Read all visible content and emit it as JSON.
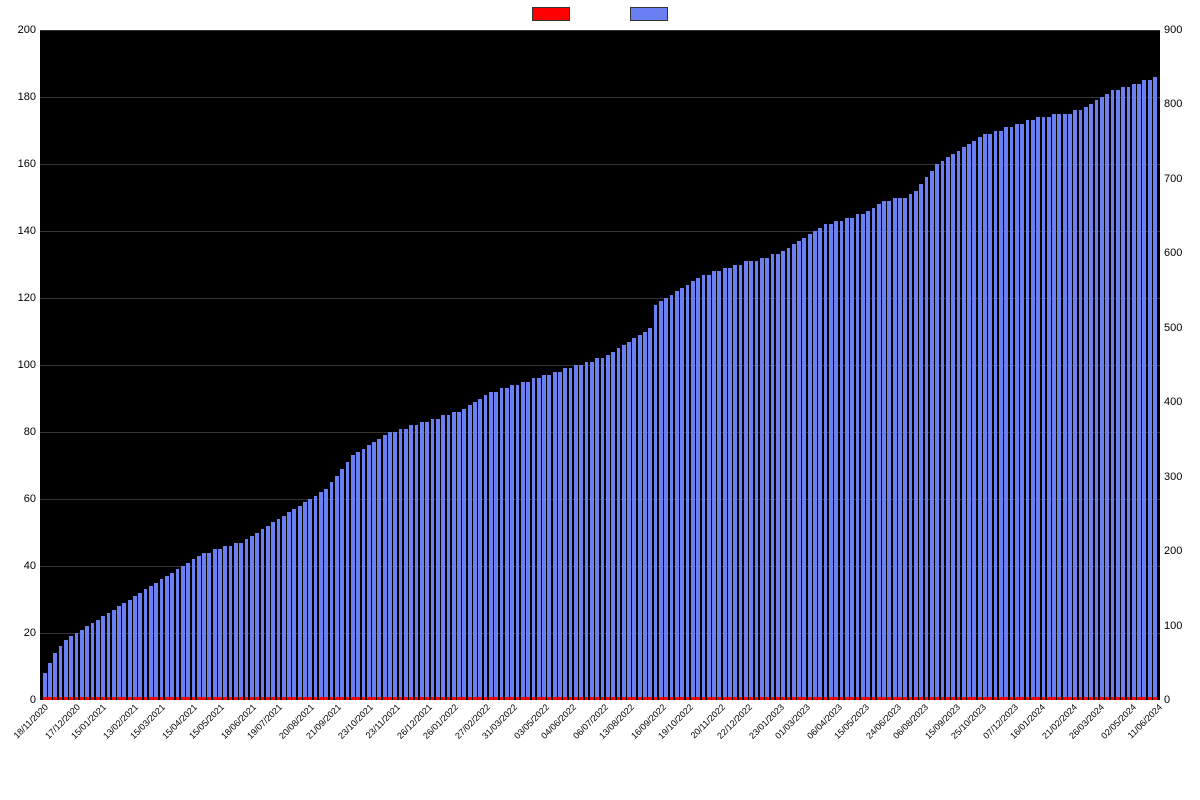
{
  "legend": {
    "series1_color": "#ff0000",
    "series2_color": "#6a7ff2",
    "swatch_border": "#333333"
  },
  "chart": {
    "type": "bar-dual-axis",
    "background_color": "#000000",
    "grid_color": "#333333",
    "bar_fill_ratio": 0.7,
    "left_axis": {
      "min": 0,
      "max": 200,
      "step": 20,
      "color": "#000000",
      "fontsize": 11
    },
    "right_axis": {
      "min": 0,
      "max": 900,
      "step": 100,
      "color": "#000000",
      "fontsize": 11
    },
    "red_value": 1,
    "categories": [
      "18/11/2020",
      "17/12/2020",
      "15/01/2021",
      "13/02/2021",
      "15/03/2021",
      "15/04/2021",
      "15/05/2021",
      "18/06/2021",
      "19/07/2021",
      "20/08/2021",
      "21/09/2021",
      "23/10/2021",
      "23/11/2021",
      "26/12/2021",
      "26/01/2022",
      "27/02/2022",
      "31/03/2022",
      "03/05/2022",
      "04/06/2022",
      "06/07/2022",
      "13/08/2022",
      "16/09/2022",
      "19/10/2022",
      "20/11/2022",
      "22/12/2022",
      "23/01/2023",
      "01/03/2023",
      "06/04/2023",
      "15/05/2023",
      "24/06/2023",
      "06/08/2023",
      "15/09/2023",
      "25/10/2023",
      "07/12/2023",
      "16/01/2024",
      "21/02/2024",
      "26/03/2024",
      "02/05/2024",
      "11/06/2024"
    ],
    "x_label_fontsize": 9,
    "x_label_rotation": -45,
    "blue_values": [
      8,
      11,
      14,
      16,
      18,
      19,
      20,
      21,
      22,
      23,
      24,
      25,
      26,
      27,
      28,
      29,
      30,
      31,
      32,
      33,
      34,
      35,
      36,
      37,
      38,
      39,
      40,
      41,
      42,
      43,
      44,
      44,
      45,
      45,
      46,
      46,
      47,
      47,
      48,
      49,
      50,
      51,
      52,
      53,
      54,
      55,
      56,
      57,
      58,
      59,
      60,
      61,
      62,
      63,
      65,
      67,
      69,
      71,
      73,
      74,
      75,
      76,
      77,
      78,
      79,
      80,
      80,
      81,
      81,
      82,
      82,
      83,
      83,
      84,
      84,
      85,
      85,
      86,
      86,
      87,
      88,
      89,
      90,
      91,
      92,
      92,
      93,
      93,
      94,
      94,
      95,
      95,
      96,
      96,
      97,
      97,
      98,
      98,
      99,
      99,
      100,
      100,
      101,
      101,
      102,
      102,
      103,
      104,
      105,
      106,
      107,
      108,
      109,
      110,
      111,
      118,
      119,
      120,
      121,
      122,
      123,
      124,
      125,
      126,
      127,
      127,
      128,
      128,
      129,
      129,
      130,
      130,
      131,
      131,
      131,
      132,
      132,
      133,
      133,
      134,
      135,
      136,
      137,
      138,
      139,
      140,
      141,
      142,
      142,
      143,
      143,
      144,
      144,
      145,
      145,
      146,
      147,
      148,
      149,
      149,
      150,
      150,
      150,
      151,
      152,
      154,
      156,
      158,
      160,
      161,
      162,
      163,
      164,
      165,
      166,
      167,
      168,
      169,
      169,
      170,
      170,
      171,
      171,
      172,
      172,
      173,
      173,
      174,
      174,
      174,
      175,
      175,
      175,
      175,
      176,
      176,
      177,
      178,
      179,
      180,
      181,
      182,
      182,
      183,
      183,
      184,
      184,
      185,
      185,
      186
    ]
  }
}
